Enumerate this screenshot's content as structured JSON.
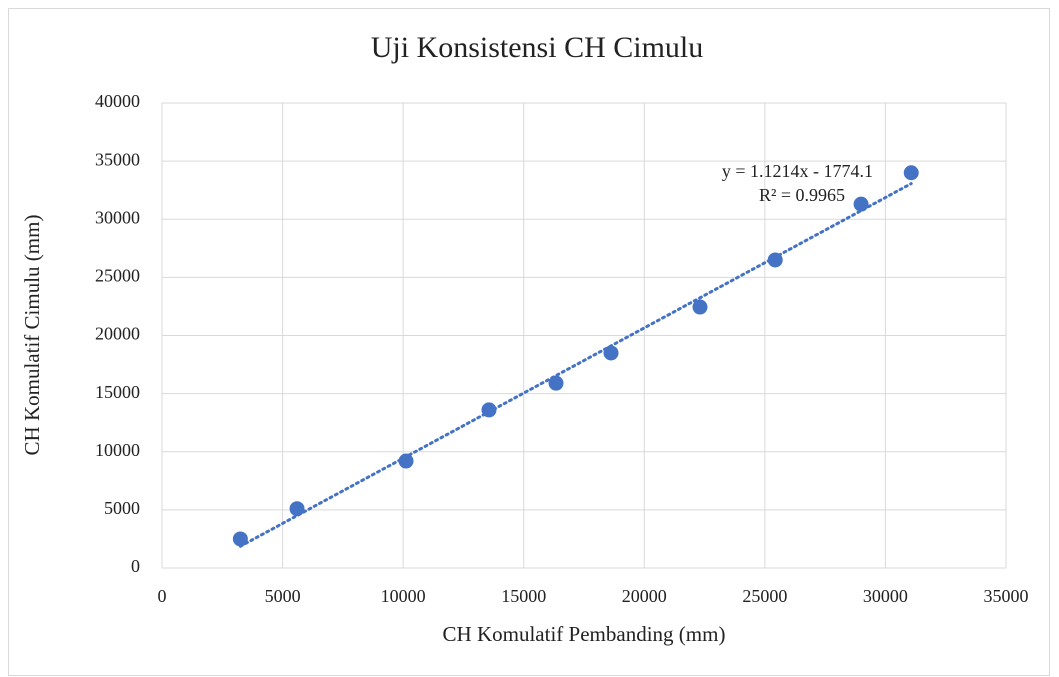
{
  "chart_data": {
    "type": "scatter",
    "title": "Uji Konsistensi CH Cimulu",
    "xlabel": "CH Komulatif Pembanding (mm)",
    "ylabel": "CH Komulatif Cimulu (mm)",
    "x": [
      3250,
      5600,
      10120,
      13560,
      16340,
      18620,
      22310,
      25430,
      28990,
      31070
    ],
    "values": [
      2500,
      5100,
      9200,
      13600,
      15900,
      18500,
      22450,
      26500,
      31300,
      34000
    ],
    "color": "#4472c4",
    "xlim": [
      0,
      35000
    ],
    "xticks": [
      0,
      5000,
      10000,
      15000,
      20000,
      25000,
      30000,
      35000
    ],
    "ylim": [
      0,
      40000
    ],
    "yticks": [
      0,
      5000,
      10000,
      15000,
      20000,
      25000,
      30000,
      35000,
      40000
    ],
    "grid": true,
    "trendline": {
      "slope": 1.1214,
      "intercept": -1774.1,
      "equation": "y = 1.1214x - 1774.1",
      "r2": "R² = 0.9965"
    }
  }
}
